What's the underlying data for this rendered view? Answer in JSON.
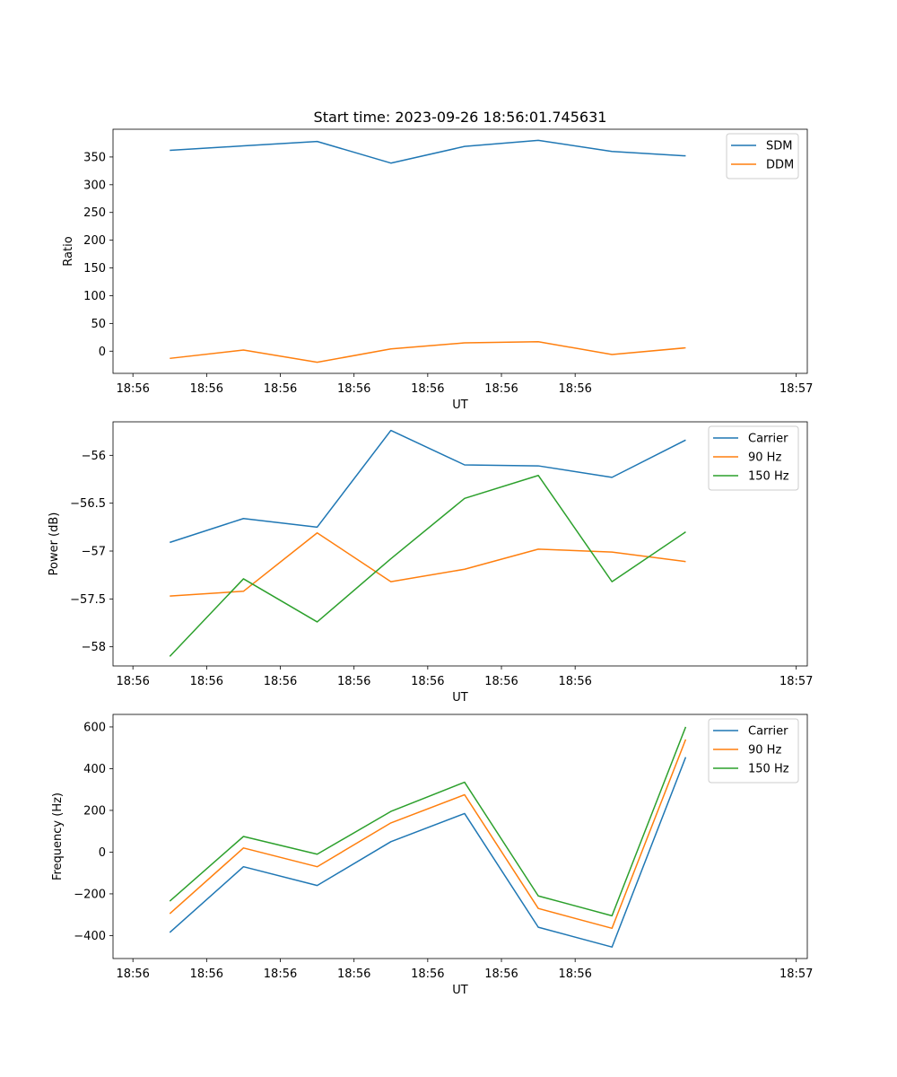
{
  "figure_title": "Start time: 2023-09-26 18:56:01.745631",
  "chart_data": [
    {
      "type": "line",
      "title": "Start time: 2023-09-26 18:56:01.745631",
      "xlabel": "UT",
      "ylabel": "Ratio",
      "x_tick_labels": [
        "18:56",
        "18:56",
        "18:56",
        "18:56",
        "18:56",
        "18:56",
        "18:56"
      ],
      "x_tick_last_label": "18:57",
      "x_index": [
        0,
        1,
        2,
        3,
        4,
        5,
        6,
        7
      ],
      "xlim": [
        -0.77,
        8.65
      ],
      "ylim": [
        -40,
        400
      ],
      "yticks": [
        0,
        50,
        100,
        150,
        200,
        250,
        300,
        350
      ],
      "legend_position": "top-right",
      "series": [
        {
          "name": "SDM",
          "color": "#1f77b4",
          "values": [
            362,
            370,
            378,
            339,
            369,
            380,
            360,
            352
          ]
        },
        {
          "name": "DDM",
          "color": "#ff7f0e",
          "values": [
            -13,
            2,
            -20,
            4,
            15,
            17,
            -6,
            6
          ]
        }
      ]
    },
    {
      "type": "line",
      "title": "",
      "xlabel": "UT",
      "ylabel": "Power (dB)",
      "x_tick_labels": [
        "18:56",
        "18:56",
        "18:56",
        "18:56",
        "18:56",
        "18:56",
        "18:56"
      ],
      "x_tick_last_label": "18:57",
      "x_index": [
        0,
        1,
        2,
        3,
        4,
        5,
        6,
        7
      ],
      "xlim": [
        -0.77,
        8.65
      ],
      "ylim": [
        -58.2,
        -55.65
      ],
      "yticks": [
        -58.0,
        -57.5,
        -57.0,
        -56.5,
        -56.0
      ],
      "legend_position": "top-right",
      "series": [
        {
          "name": "Carrier",
          "color": "#1f77b4",
          "values": [
            -56.91,
            -56.66,
            -56.75,
            -55.74,
            -56.1,
            -56.11,
            -56.23,
            -55.84
          ]
        },
        {
          "name": "90 Hz",
          "color": "#ff7f0e",
          "values": [
            -57.47,
            -57.42,
            -56.81,
            -57.32,
            -57.19,
            -56.98,
            -57.01,
            -57.11
          ]
        },
        {
          "name": "150 Hz",
          "color": "#2ca02c",
          "values": [
            -58.1,
            -57.29,
            -57.74,
            -57.08,
            -56.45,
            -56.21,
            -57.32,
            -56.8
          ]
        }
      ]
    },
    {
      "type": "line",
      "title": "",
      "xlabel": "UT",
      "ylabel": "Frequency (Hz)",
      "x_tick_labels": [
        "18:56",
        "18:56",
        "18:56",
        "18:56",
        "18:56",
        "18:56",
        "18:56"
      ],
      "x_tick_last_label": "18:57",
      "x_index": [
        0,
        1,
        2,
        3,
        4,
        5,
        6,
        7
      ],
      "xlim": [
        -0.77,
        8.65
      ],
      "ylim": [
        -510,
        660
      ],
      "yticks": [
        -400,
        -200,
        0,
        200,
        400,
        600
      ],
      "legend_position": "top-right",
      "series": [
        {
          "name": "Carrier",
          "color": "#1f77b4",
          "values": [
            -385,
            -70,
            -160,
            50,
            185,
            -360,
            -455,
            455
          ]
        },
        {
          "name": "90 Hz",
          "color": "#ff7f0e",
          "values": [
            -295,
            20,
            -70,
            140,
            275,
            -270,
            -365,
            540
          ]
        },
        {
          "name": "150 Hz",
          "color": "#2ca02c",
          "values": [
            -235,
            75,
            -10,
            195,
            335,
            -210,
            -305,
            600
          ]
        }
      ]
    }
  ]
}
